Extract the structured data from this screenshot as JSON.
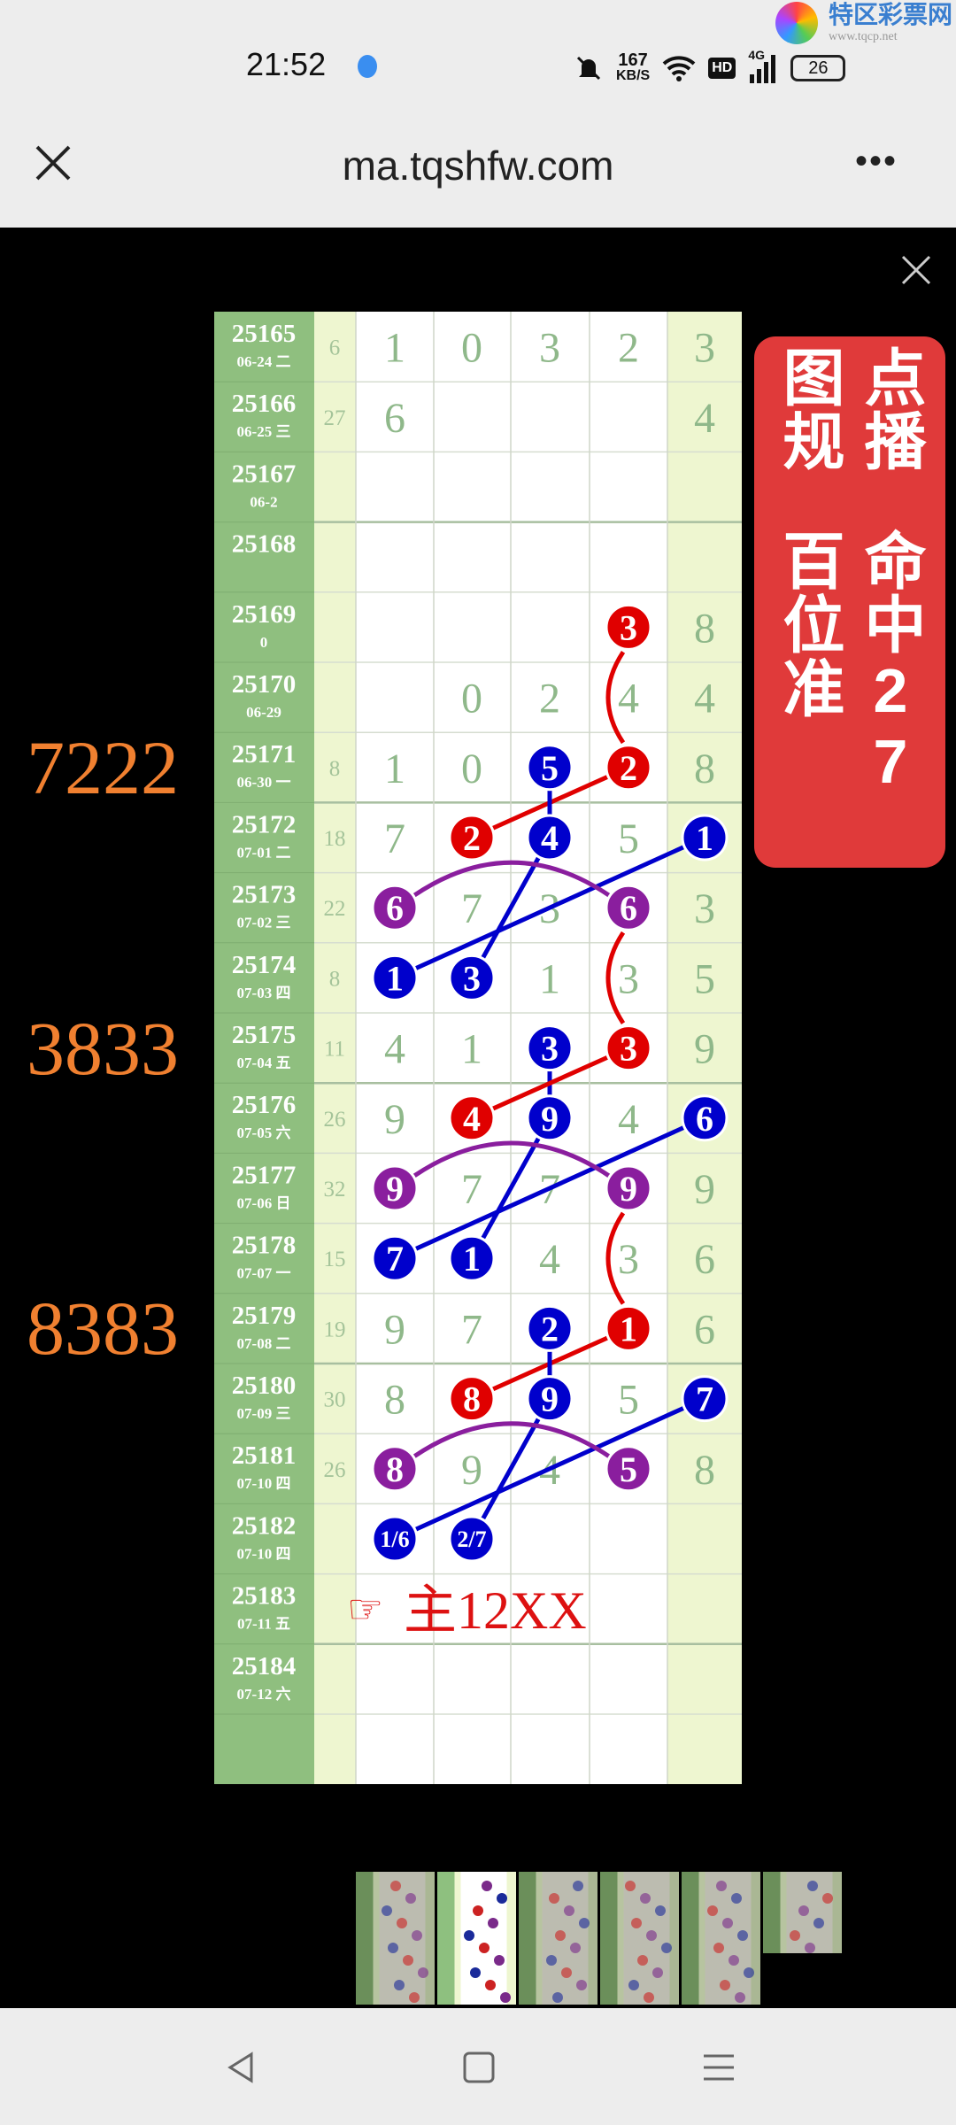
{
  "status_bar": {
    "time": "21:52",
    "speed_value": "167",
    "speed_unit": "KB/S",
    "hd": "HD",
    "network": "4G",
    "battery": "26",
    "icons": [
      "app-icon",
      "mute-icon",
      "wifi-icon",
      "hd-icon",
      "signal-icon",
      "battery-icon"
    ]
  },
  "watermark": {
    "name": "特区彩票网",
    "url": "www.tqcp.net"
  },
  "browser": {
    "url": "ma.tqshfw.com",
    "more": "•••"
  },
  "banner": {
    "line1": "点播图规",
    "line2": "命中27百位准",
    "color": "#e03a3a"
  },
  "colors": {
    "issue_bg": "#8fbf7f",
    "pale": "#eef6d0",
    "digit": "#8fb88a",
    "red": "#e00000",
    "blue": "#0000cc",
    "purple": "#8a1e9e",
    "orange": "#f08030",
    "note": "#dd1111"
  },
  "rows": [
    {
      "issue": "25165",
      "date": "06-24 二",
      "sum": "6",
      "d": [
        "1",
        "0",
        "3",
        "2"
      ],
      "last": "3"
    },
    {
      "issue": "25166",
      "date": "06-25 三",
      "sum": "27",
      "d": [
        "6",
        "",
        "",
        ""
      ],
      "last": "4"
    },
    {
      "issue": "25167",
      "date": "06-2",
      "sum": "",
      "d": [
        "",
        "",
        "",
        ""
      ],
      "last": ""
    },
    {
      "issue": "25168",
      "date": "",
      "sum": "",
      "d": [
        "",
        "",
        "",
        ""
      ],
      "last": ""
    },
    {
      "issue": "25169",
      "date": "0",
      "sum": "",
      "d": [
        "",
        "",
        "",
        ""
      ],
      "last": "8"
    },
    {
      "issue": "25170",
      "date": "06-29",
      "sum": "",
      "d": [
        "",
        "0",
        "2",
        "4"
      ],
      "last": "4"
    },
    {
      "issue": "25171",
      "date": "06-30 一",
      "sum": "8",
      "d": [
        "1",
        "0",
        "",
        ""
      ],
      "last": "8"
    },
    {
      "issue": "25172",
      "date": "07-01 二",
      "sum": "18",
      "d": [
        "7",
        "",
        "",
        "5"
      ],
      "last": ""
    },
    {
      "issue": "25173",
      "date": "07-02 三",
      "sum": "22",
      "d": [
        "",
        "7",
        "3",
        ""
      ],
      "last": "3"
    },
    {
      "issue": "25174",
      "date": "07-03 四",
      "sum": "8",
      "d": [
        "",
        "",
        "1",
        "3"
      ],
      "last": "5"
    },
    {
      "issue": "25175",
      "date": "07-04 五",
      "sum": "11",
      "d": [
        "4",
        "1",
        "",
        ""
      ],
      "last": "9"
    },
    {
      "issue": "25176",
      "date": "07-05 六",
      "sum": "26",
      "d": [
        "9",
        "",
        "",
        "4"
      ],
      "last": ""
    },
    {
      "issue": "25177",
      "date": "07-06 日",
      "sum": "32",
      "d": [
        "",
        "7",
        "7",
        ""
      ],
      "last": "9"
    },
    {
      "issue": "25178",
      "date": "07-07 一",
      "sum": "15",
      "d": [
        "",
        "",
        "4",
        "3"
      ],
      "last": "6"
    },
    {
      "issue": "25179",
      "date": "07-08 二",
      "sum": "19",
      "d": [
        "9",
        "7",
        "",
        ""
      ],
      "last": "6"
    },
    {
      "issue": "25180",
      "date": "07-09 三",
      "sum": "30",
      "d": [
        "8",
        "",
        "",
        "5"
      ],
      "last": ""
    },
    {
      "issue": "25181",
      "date": "07-10 四",
      "sum": "26",
      "d": [
        "",
        "9",
        "4",
        ""
      ],
      "last": "8"
    },
    {
      "issue": "25182",
      "date": "07-10 四",
      "sum": "",
      "d": [
        "",
        "",
        "",
        ""
      ],
      "last": ""
    },
    {
      "issue": "25183",
      "date": "07-11 五",
      "sum": "",
      "d": [
        "",
        "",
        "",
        ""
      ],
      "last": ""
    },
    {
      "issue": "25184",
      "date": "07-12 六",
      "sum": "",
      "d": [
        "",
        "",
        "",
        ""
      ],
      "last": ""
    },
    {
      "issue": "",
      "date": "",
      "sum": "",
      "d": [
        "",
        "",
        "",
        ""
      ],
      "last": ""
    }
  ],
  "balls": [
    {
      "row": 4,
      "col": 3,
      "text": "3",
      "color": "red"
    },
    {
      "row": 6,
      "col": 2,
      "text": "5",
      "color": "blue"
    },
    {
      "row": 6,
      "col": 3,
      "text": "2",
      "color": "red"
    },
    {
      "row": 7,
      "col": 1,
      "text": "2",
      "color": "red"
    },
    {
      "row": 7,
      "col": 2,
      "text": "4",
      "color": "blue"
    },
    {
      "row": 7,
      "col": 4,
      "text": "1",
      "color": "blue"
    },
    {
      "row": 8,
      "col": 0,
      "text": "6",
      "color": "purple"
    },
    {
      "row": 8,
      "col": 3,
      "text": "6",
      "color": "purple"
    },
    {
      "row": 9,
      "col": 0,
      "text": "1",
      "color": "blue"
    },
    {
      "row": 9,
      "col": 1,
      "text": "3",
      "color": "blue"
    },
    {
      "row": 10,
      "col": 2,
      "text": "3",
      "color": "blue"
    },
    {
      "row": 10,
      "col": 3,
      "text": "3",
      "color": "red"
    },
    {
      "row": 11,
      "col": 1,
      "text": "4",
      "color": "red"
    },
    {
      "row": 11,
      "col": 2,
      "text": "9",
      "color": "blue"
    },
    {
      "row": 11,
      "col": 4,
      "text": "6",
      "color": "blue"
    },
    {
      "row": 12,
      "col": 0,
      "text": "9",
      "color": "purple"
    },
    {
      "row": 12,
      "col": 3,
      "text": "9",
      "color": "purple"
    },
    {
      "row": 13,
      "col": 0,
      "text": "7",
      "color": "blue"
    },
    {
      "row": 13,
      "col": 1,
      "text": "1",
      "color": "blue"
    },
    {
      "row": 14,
      "col": 2,
      "text": "2",
      "color": "blue"
    },
    {
      "row": 14,
      "col": 3,
      "text": "1",
      "color": "red"
    },
    {
      "row": 15,
      "col": 1,
      "text": "8",
      "color": "red"
    },
    {
      "row": 15,
      "col": 2,
      "text": "9",
      "color": "blue"
    },
    {
      "row": 15,
      "col": 4,
      "text": "7",
      "color": "blue"
    },
    {
      "row": 16,
      "col": 0,
      "text": "8",
      "color": "purple"
    },
    {
      "row": 16,
      "col": 3,
      "text": "5",
      "color": "purple"
    },
    {
      "row": 17,
      "col": 0,
      "text": "1/6",
      "color": "blue"
    },
    {
      "row": 17,
      "col": 1,
      "text": "2/7",
      "color": "blue"
    }
  ],
  "links": [
    {
      "from": [
        4,
        3
      ],
      "to": [
        6,
        3
      ],
      "color": "red",
      "kind": "curve"
    },
    {
      "from": [
        6,
        3
      ],
      "to": [
        7,
        1
      ],
      "color": "red",
      "kind": "line"
    },
    {
      "from": [
        6,
        2
      ],
      "to": [
        7,
        2
      ],
      "color": "blue",
      "kind": "line"
    },
    {
      "from": [
        7,
        2
      ],
      "to": [
        9,
        1
      ],
      "color": "blue",
      "kind": "line"
    },
    {
      "from": [
        7,
        4
      ],
      "to": [
        9,
        0
      ],
      "color": "blue",
      "kind": "line"
    },
    {
      "from": [
        8,
        0
      ],
      "to": [
        8,
        3
      ],
      "color": "purple",
      "kind": "arc"
    },
    {
      "from": [
        8,
        3
      ],
      "to": [
        10,
        3
      ],
      "color": "red",
      "kind": "curve"
    },
    {
      "from": [
        10,
        2
      ],
      "to": [
        11,
        2
      ],
      "color": "blue",
      "kind": "line"
    },
    {
      "from": [
        10,
        3
      ],
      "to": [
        11,
        1
      ],
      "color": "red",
      "kind": "line"
    },
    {
      "from": [
        11,
        2
      ],
      "to": [
        13,
        1
      ],
      "color": "blue",
      "kind": "line"
    },
    {
      "from": [
        11,
        4
      ],
      "to": [
        13,
        0
      ],
      "color": "blue",
      "kind": "line"
    },
    {
      "from": [
        12,
        0
      ],
      "to": [
        12,
        3
      ],
      "color": "purple",
      "kind": "arc"
    },
    {
      "from": [
        12,
        3
      ],
      "to": [
        14,
        3
      ],
      "color": "red",
      "kind": "curve"
    },
    {
      "from": [
        14,
        3
      ],
      "to": [
        15,
        1
      ],
      "color": "red",
      "kind": "line"
    },
    {
      "from": [
        14,
        2
      ],
      "to": [
        15,
        2
      ],
      "color": "blue",
      "kind": "line"
    },
    {
      "from": [
        15,
        2
      ],
      "to": [
        17,
        1
      ],
      "color": "blue",
      "kind": "line"
    },
    {
      "from": [
        15,
        4
      ],
      "to": [
        17,
        0
      ],
      "color": "blue",
      "kind": "line"
    },
    {
      "from": [
        16,
        0
      ],
      "to": [
        16,
        3
      ],
      "color": "purple",
      "kind": "arc"
    }
  ],
  "overlays": [
    {
      "row": 6,
      "text": "7222"
    },
    {
      "row": 10,
      "text": "3833"
    },
    {
      "row": 14,
      "text": "8383"
    }
  ],
  "prediction": {
    "row": 18,
    "pointer": "☞",
    "text": "主12XX"
  },
  "thumbnails": {
    "count": 6,
    "selected": 2
  }
}
